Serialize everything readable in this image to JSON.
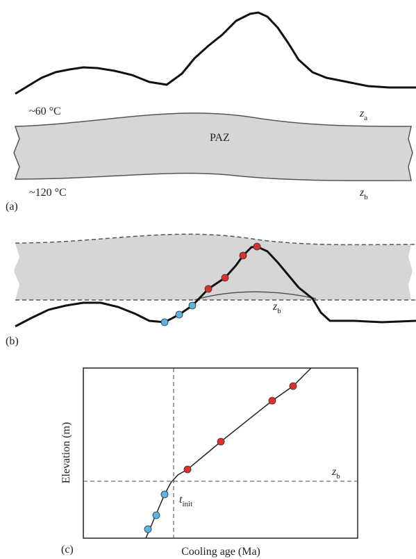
{
  "panel_a": {
    "label": "(a)",
    "top_temp": "~60 °C",
    "zone": "PAZ",
    "bottom_temp": "~120 °C",
    "top_depth": {
      "base": "z",
      "sub": "a"
    },
    "bottom_depth": {
      "base": "z",
      "sub": "b"
    }
  },
  "panel_b": {
    "label": "(b)",
    "depth": {
      "base": "z",
      "sub": "b"
    }
  },
  "panel_c": {
    "label": "(c)",
    "y_label": "Elevation (m)",
    "x_label": "Cooling age (Ma)",
    "inflection": {
      "base": "t",
      "sub": "init"
    },
    "depth": {
      "base": "z",
      "sub": "b"
    }
  }
}
